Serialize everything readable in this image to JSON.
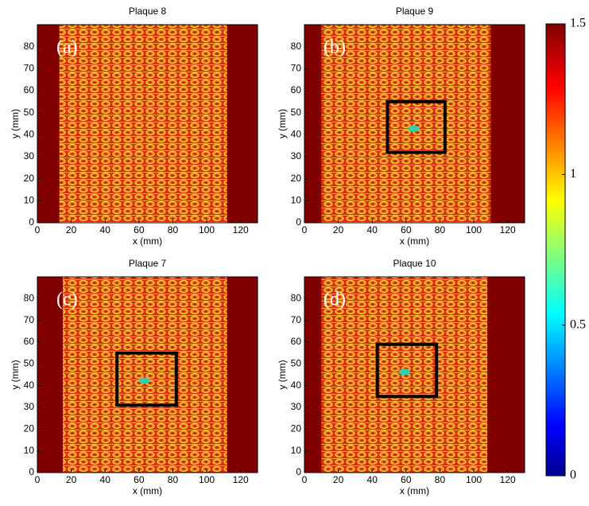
{
  "chart_data": [
    {
      "type": "heatmap",
      "title": "Plaque 8",
      "panel_label": "(a)",
      "x_label": "x (mm)",
      "y_label": "y (mm)",
      "xlim": [
        0,
        130
      ],
      "ylim": [
        0,
        90
      ],
      "xticks": [
        0,
        20,
        40,
        60,
        80,
        100,
        120
      ],
      "yticks": [
        0,
        10,
        20,
        30,
        40,
        50,
        60,
        70,
        80
      ],
      "plate_x": [
        13,
        112
      ]
    },
    {
      "type": "heatmap",
      "title": "Plaque 9",
      "panel_label": "(b)",
      "x_label": "x (mm)",
      "y_label": "y (mm)",
      "xlim": [
        0,
        130
      ],
      "ylim": [
        0,
        90
      ],
      "xticks": [
        0,
        20,
        40,
        60,
        80,
        100,
        120
      ],
      "yticks": [
        0,
        10,
        20,
        30,
        40,
        50,
        60,
        70,
        80
      ],
      "plate_x": [
        10,
        110
      ],
      "box_x": [
        49,
        83
      ],
      "box_y": [
        32,
        55
      ]
    },
    {
      "type": "heatmap",
      "title": "Plaque 7",
      "panel_label": "(c)",
      "x_label": "x (mm)",
      "y_label": "y (mm)",
      "xlim": [
        0,
        130
      ],
      "ylim": [
        0,
        90
      ],
      "xticks": [
        0,
        20,
        40,
        60,
        80,
        100,
        120
      ],
      "yticks": [
        0,
        10,
        20,
        30,
        40,
        50,
        60,
        70,
        80
      ],
      "plate_x": [
        15,
        112
      ],
      "box_x": [
        47,
        82
      ],
      "box_y": [
        31,
        55
      ]
    },
    {
      "type": "heatmap",
      "title": "Plaque 10",
      "panel_label": "(d)",
      "x_label": "x (mm)",
      "y_label": "y (mm)",
      "xlim": [
        0,
        130
      ],
      "ylim": [
        0,
        90
      ],
      "xticks": [
        0,
        20,
        40,
        60,
        80,
        100,
        120
      ],
      "yticks": [
        0,
        10,
        20,
        30,
        40,
        50,
        60,
        70,
        80
      ],
      "plate_x": [
        10,
        108
      ],
      "box_x": [
        43,
        78
      ],
      "box_y": [
        35,
        59
      ]
    },
    {
      "type": "colorbar",
      "clim": [
        0,
        1.5
      ],
      "ticks": [
        0,
        0.5,
        1,
        1.5
      ]
    }
  ]
}
